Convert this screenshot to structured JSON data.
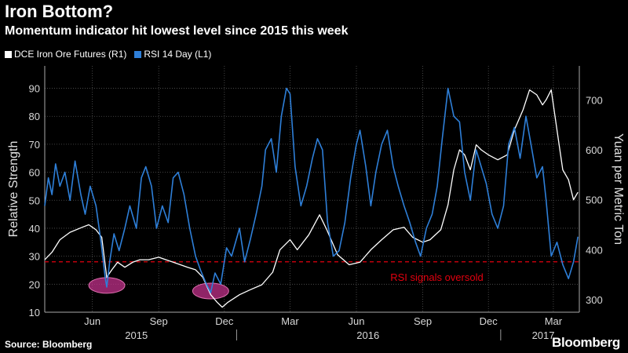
{
  "chart_data": {
    "type": "line",
    "title": "Iron Bottom?",
    "subtitle": "Momentum indicator hit lowest level since 2015 this week",
    "source": "Source: Bloomberg",
    "brand": "Bloomberg",
    "legend_placement": "top-left",
    "ylabel_left": "Relative Strength",
    "ylabel_right": "Yuan per Metric Ton",
    "ylim_left": [
      10,
      98
    ],
    "ylim_right": [
      275,
      768
    ],
    "yticks_left": [
      "10",
      "20",
      "30",
      "40",
      "50",
      "60",
      "70",
      "80",
      "90"
    ],
    "yticks_right": [
      "300",
      "400",
      "500",
      "600",
      "700"
    ],
    "xlim": [
      "2015-04-10",
      "2017-04-20"
    ],
    "month_ticks": [
      {
        "label": "Jun",
        "date": "2015-06-15"
      },
      {
        "label": "Sep",
        "date": "2015-09-15"
      },
      {
        "label": "Dec",
        "date": "2015-12-15"
      },
      {
        "label": "Mar",
        "date": "2016-03-15"
      },
      {
        "label": "Jun",
        "date": "2016-06-15"
      },
      {
        "label": "Sep",
        "date": "2016-09-15"
      },
      {
        "label": "Dec",
        "date": "2016-12-15"
      },
      {
        "label": "Mar",
        "date": "2017-03-15"
      }
    ],
    "year_labels": [
      {
        "label": "2015",
        "date": "2015-08-15"
      },
      {
        "label": "2016",
        "date": "2016-07-01"
      },
      {
        "label": "2017",
        "date": "2017-03-01"
      }
    ],
    "year_boundaries": [
      "2016-01-01",
      "2017-01-01"
    ],
    "oversold_line": {
      "value": 28,
      "label": "RSI signals oversold",
      "color": "#e3000f"
    },
    "highlights": [
      {
        "date": "2015-07-05",
        "value": 19
      },
      {
        "date": "2015-11-26",
        "value": 17
      }
    ],
    "series": [
      {
        "name": "DCE Iron Ore Futures (R1)",
        "axis": "right",
        "color": "#ffffff",
        "points": [
          [
            "2015-04-10",
            380
          ],
          [
            "2015-04-20",
            395
          ],
          [
            "2015-05-01",
            420
          ],
          [
            "2015-05-15",
            435
          ],
          [
            "2015-06-01",
            445
          ],
          [
            "2015-06-10",
            450
          ],
          [
            "2015-06-20",
            440
          ],
          [
            "2015-06-28",
            425
          ],
          [
            "2015-07-05",
            345
          ],
          [
            "2015-07-12",
            360
          ],
          [
            "2015-07-20",
            375
          ],
          [
            "2015-07-30",
            365
          ],
          [
            "2015-08-10",
            375
          ],
          [
            "2015-08-20",
            380
          ],
          [
            "2015-09-01",
            380
          ],
          [
            "2015-09-15",
            385
          ],
          [
            "2015-09-25",
            380
          ],
          [
            "2015-10-05",
            375
          ],
          [
            "2015-10-15",
            370
          ],
          [
            "2015-10-25",
            365
          ],
          [
            "2015-11-05",
            360
          ],
          [
            "2015-11-15",
            345
          ],
          [
            "2015-11-26",
            310
          ],
          [
            "2015-12-05",
            295
          ],
          [
            "2015-12-12",
            285
          ],
          [
            "2015-12-20",
            295
          ],
          [
            "2016-01-05",
            310
          ],
          [
            "2016-01-20",
            320
          ],
          [
            "2016-02-05",
            330
          ],
          [
            "2016-02-20",
            355
          ],
          [
            "2016-03-01",
            400
          ],
          [
            "2016-03-15",
            420
          ],
          [
            "2016-03-25",
            400
          ],
          [
            "2016-04-10",
            430
          ],
          [
            "2016-04-25",
            470
          ],
          [
            "2016-05-05",
            440
          ],
          [
            "2016-05-20",
            390
          ],
          [
            "2016-06-05",
            370
          ],
          [
            "2016-06-20",
            375
          ],
          [
            "2016-07-05",
            400
          ],
          [
            "2016-07-20",
            420
          ],
          [
            "2016-08-05",
            440
          ],
          [
            "2016-08-20",
            445
          ],
          [
            "2016-09-01",
            425
          ],
          [
            "2016-09-15",
            415
          ],
          [
            "2016-09-25",
            420
          ],
          [
            "2016-10-10",
            440
          ],
          [
            "2016-10-20",
            490
          ],
          [
            "2016-10-28",
            560
          ],
          [
            "2016-11-05",
            600
          ],
          [
            "2016-11-12",
            590
          ],
          [
            "2016-11-20",
            560
          ],
          [
            "2016-11-28",
            610
          ],
          [
            "2016-12-05",
            600
          ],
          [
            "2016-12-15",
            590
          ],
          [
            "2016-12-28",
            580
          ],
          [
            "2017-01-10",
            590
          ],
          [
            "2017-01-20",
            640
          ],
          [
            "2017-02-01",
            680
          ],
          [
            "2017-02-10",
            720
          ],
          [
            "2017-02-20",
            710
          ],
          [
            "2017-02-28",
            690
          ],
          [
            "2017-03-05",
            700
          ],
          [
            "2017-03-12",
            720
          ],
          [
            "2017-03-20",
            640
          ],
          [
            "2017-03-28",
            560
          ],
          [
            "2017-04-05",
            540
          ],
          [
            "2017-04-12",
            500
          ],
          [
            "2017-04-18",
            515
          ]
        ]
      },
      {
        "name": "RSI 14 Day (L1)",
        "axis": "left",
        "color": "#2e7fd8",
        "points": [
          [
            "2015-04-10",
            48
          ],
          [
            "2015-04-15",
            58
          ],
          [
            "2015-04-20",
            52
          ],
          [
            "2015-04-25",
            63
          ],
          [
            "2015-05-01",
            55
          ],
          [
            "2015-05-08",
            60
          ],
          [
            "2015-05-15",
            50
          ],
          [
            "2015-05-22",
            64
          ],
          [
            "2015-05-30",
            52
          ],
          [
            "2015-06-05",
            45
          ],
          [
            "2015-06-12",
            55
          ],
          [
            "2015-06-20",
            48
          ],
          [
            "2015-06-27",
            35
          ],
          [
            "2015-07-03",
            22
          ],
          [
            "2015-07-05",
            19
          ],
          [
            "2015-07-09",
            28
          ],
          [
            "2015-07-15",
            38
          ],
          [
            "2015-07-22",
            32
          ],
          [
            "2015-07-30",
            40
          ],
          [
            "2015-08-06",
            48
          ],
          [
            "2015-08-15",
            40
          ],
          [
            "2015-08-22",
            58
          ],
          [
            "2015-08-28",
            62
          ],
          [
            "2015-09-05",
            55
          ],
          [
            "2015-09-12",
            40
          ],
          [
            "2015-09-20",
            48
          ],
          [
            "2015-09-28",
            42
          ],
          [
            "2015-10-05",
            58
          ],
          [
            "2015-10-12",
            60
          ],
          [
            "2015-10-20",
            52
          ],
          [
            "2015-10-28",
            40
          ],
          [
            "2015-11-05",
            30
          ],
          [
            "2015-11-12",
            25
          ],
          [
            "2015-11-20",
            20
          ],
          [
            "2015-11-26",
            17
          ],
          [
            "2015-12-02",
            24
          ],
          [
            "2015-12-10",
            20
          ],
          [
            "2015-12-18",
            33
          ],
          [
            "2015-12-25",
            30
          ],
          [
            "2016-01-05",
            40
          ],
          [
            "2016-01-12",
            28
          ],
          [
            "2016-01-20",
            36
          ],
          [
            "2016-01-28",
            45
          ],
          [
            "2016-02-05",
            55
          ],
          [
            "2016-02-10",
            68
          ],
          [
            "2016-02-18",
            72
          ],
          [
            "2016-02-25",
            60
          ],
          [
            "2016-03-03",
            80
          ],
          [
            "2016-03-10",
            90
          ],
          [
            "2016-03-15",
            88
          ],
          [
            "2016-03-22",
            62
          ],
          [
            "2016-03-30",
            48
          ],
          [
            "2016-04-07",
            55
          ],
          [
            "2016-04-15",
            65
          ],
          [
            "2016-04-22",
            72
          ],
          [
            "2016-04-29",
            68
          ],
          [
            "2016-05-06",
            42
          ],
          [
            "2016-05-14",
            30
          ],
          [
            "2016-05-22",
            32
          ],
          [
            "2016-05-30",
            42
          ],
          [
            "2016-06-07",
            58
          ],
          [
            "2016-06-15",
            70
          ],
          [
            "2016-06-20",
            75
          ],
          [
            "2016-06-28",
            62
          ],
          [
            "2016-07-05",
            48
          ],
          [
            "2016-07-12",
            60
          ],
          [
            "2016-07-20",
            70
          ],
          [
            "2016-07-28",
            75
          ],
          [
            "2016-08-05",
            62
          ],
          [
            "2016-08-12",
            55
          ],
          [
            "2016-08-20",
            48
          ],
          [
            "2016-08-28",
            42
          ],
          [
            "2016-09-05",
            35
          ],
          [
            "2016-09-12",
            30
          ],
          [
            "2016-09-20",
            40
          ],
          [
            "2016-09-28",
            45
          ],
          [
            "2016-10-05",
            55
          ],
          [
            "2016-10-12",
            72
          ],
          [
            "2016-10-20",
            90
          ],
          [
            "2016-10-28",
            80
          ],
          [
            "2016-11-05",
            78
          ],
          [
            "2016-11-12",
            60
          ],
          [
            "2016-11-20",
            50
          ],
          [
            "2016-11-28",
            68
          ],
          [
            "2016-12-05",
            62
          ],
          [
            "2016-12-12",
            56
          ],
          [
            "2016-12-20",
            45
          ],
          [
            "2016-12-28",
            40
          ],
          [
            "2017-01-05",
            48
          ],
          [
            "2017-01-12",
            70
          ],
          [
            "2017-01-20",
            76
          ],
          [
            "2017-01-28",
            65
          ],
          [
            "2017-02-05",
            80
          ],
          [
            "2017-02-12",
            70
          ],
          [
            "2017-02-20",
            58
          ],
          [
            "2017-02-28",
            62
          ],
          [
            "2017-03-05",
            50
          ],
          [
            "2017-03-12",
            30
          ],
          [
            "2017-03-20",
            35
          ],
          [
            "2017-03-28",
            27
          ],
          [
            "2017-04-05",
            22
          ],
          [
            "2017-04-12",
            28
          ],
          [
            "2017-04-18",
            37
          ]
        ]
      }
    ]
  }
}
